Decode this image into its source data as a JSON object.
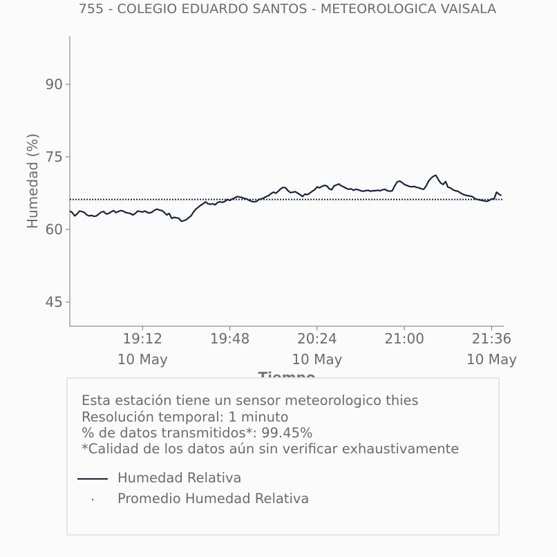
{
  "chart_data": {
    "type": "line",
    "title": "755 - COLEGIO EDUARDO SANTOS - METEOROLOGICA VAISALA",
    "xlabel": "Tiempo",
    "ylabel": "Humedad (%)",
    "ylim": [
      40,
      100
    ],
    "yticks": [
      45,
      60,
      75,
      90
    ],
    "xlim_minutes": [
      1122,
      1301
    ],
    "xticks": [
      {
        "time": "19:12",
        "date": "10 May",
        "minute": 1152
      },
      {
        "time": "19:48",
        "date": "",
        "minute": 1188
      },
      {
        "time": "20:24",
        "date": "10 May",
        "minute": 1224
      },
      {
        "time": "21:00",
        "date": "",
        "minute": 1260
      },
      {
        "time": "21:36",
        "date": "10 May",
        "minute": 1296
      }
    ],
    "grid": false,
    "series": [
      {
        "name": "Humedad Relativa",
        "color": "#1f1f3f",
        "style": "solid",
        "x_start_minute": 1122,
        "x_step_minutes": 1,
        "values": [
          63.8,
          63.5,
          62.8,
          63.2,
          63.8,
          63.7,
          63.5,
          63.0,
          62.8,
          62.9,
          62.7,
          62.8,
          63.2,
          63.6,
          63.7,
          63.2,
          63.3,
          63.6,
          63.9,
          63.5,
          63.7,
          63.9,
          63.8,
          63.5,
          63.4,
          63.3,
          63.0,
          63.3,
          63.8,
          63.7,
          63.6,
          63.8,
          63.5,
          63.4,
          63.6,
          64.0,
          64.2,
          64.0,
          63.9,
          63.5,
          63.0,
          63.3,
          62.3,
          62.5,
          62.4,
          62.3,
          61.7,
          61.8,
          62.0,
          62.4,
          62.8,
          63.6,
          64.2,
          64.6,
          65.0,
          65.3,
          65.7,
          65.3,
          65.2,
          65.3,
          65.1,
          65.6,
          65.7,
          65.6,
          65.8,
          66.2,
          66.0,
          66.3,
          66.5,
          66.8,
          66.7,
          66.6,
          66.4,
          66.3,
          66.0,
          65.8,
          65.7,
          65.8,
          66.2,
          66.3,
          66.5,
          66.8,
          67.0,
          67.4,
          67.7,
          67.5,
          67.9,
          68.4,
          68.7,
          68.6,
          68.0,
          67.6,
          67.7,
          67.8,
          67.5,
          67.2,
          66.8,
          67.3,
          67.2,
          67.5,
          67.9,
          68.2,
          68.8,
          68.6,
          68.9,
          69.1,
          69.0,
          68.4,
          68.2,
          69.0,
          69.2,
          69.4,
          69.0,
          68.8,
          68.5,
          68.3,
          68.4,
          68.1,
          68.3,
          68.2,
          68.0,
          67.9,
          68.0,
          68.1,
          67.9,
          68.0,
          68.0,
          68.1,
          68.0,
          68.2,
          68.3,
          68.0,
          67.9,
          68.0,
          69.0,
          69.8,
          70.0,
          69.7,
          69.3,
          69.1,
          68.9,
          68.8,
          68.9,
          68.7,
          68.6,
          68.4,
          68.3,
          69.0,
          70.0,
          70.6,
          71.0,
          71.2,
          70.3,
          69.6,
          69.3,
          69.9,
          68.7,
          68.6,
          68.2,
          68.0,
          67.9,
          67.6,
          67.3,
          67.1,
          67.0,
          66.9,
          66.8,
          66.4,
          66.2,
          66.1,
          66.0,
          65.9,
          65.8,
          66.0,
          66.3,
          66.3,
          67.7,
          67.3,
          67.0
        ]
      },
      {
        "name": "Promedio Humedad Relativa",
        "color": "#1f1f3f",
        "style": "dotted",
        "value": 66.2
      }
    ]
  },
  "info": {
    "line1": "Esta estación tiene un sensor meteorologico thies",
    "line2": "Resolución temporal: 1 minuto",
    "line3": "% de datos transmitidos*: 99.45%",
    "line4": "*Calidad de los datos aún sin verificar exhaustivamente"
  },
  "legend": {
    "placement": "bottom",
    "items": [
      {
        "label": "Humedad Relativa",
        "marker": "line"
      },
      {
        "label": "Promedio Humedad Relativa",
        "marker": "dot"
      }
    ]
  }
}
